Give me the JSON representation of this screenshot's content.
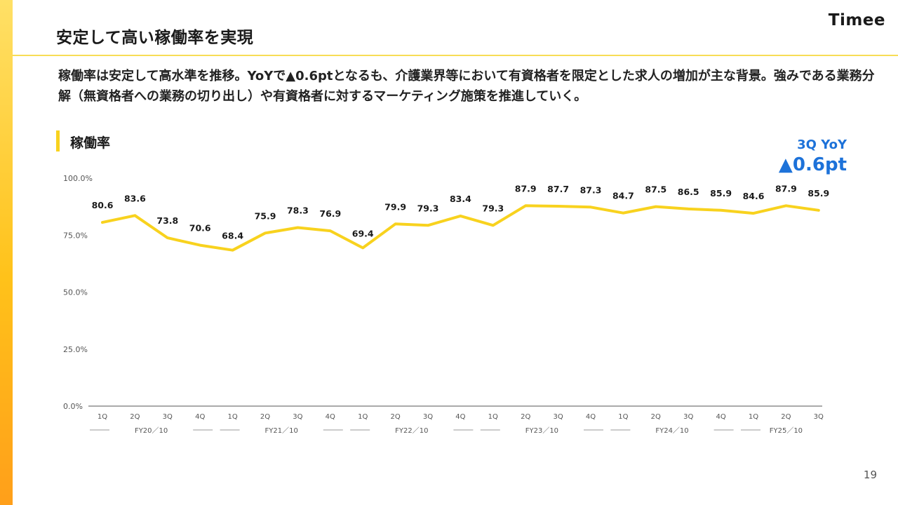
{
  "header": {
    "title": "安定して高い稼働率を実現",
    "logo": "Timee"
  },
  "body": {
    "description": "稼働率は安定して高水準を推移。YoYで▲0.6ptとなるも、介護業界等において有資格者を限定とした求人の増加が主な背景。強みである業務分解（無資格者への業務の切り出し）や有資格者に対するマーケティング施策を推進していく。"
  },
  "section": {
    "title": "稼働率"
  },
  "callout": {
    "label": "3Q YoY",
    "value": "▲0.6pt"
  },
  "chart_data": {
    "type": "line",
    "title": "稼働率",
    "ylim": [
      0,
      100
    ],
    "yticks": [
      "0.0%",
      "25.0%",
      "50.0%",
      "75.0%",
      "100.0%"
    ],
    "grid": false,
    "categories": [
      "1Q",
      "2Q",
      "3Q",
      "4Q",
      "1Q",
      "2Q",
      "3Q",
      "4Q",
      "1Q",
      "2Q",
      "3Q",
      "4Q",
      "1Q",
      "2Q",
      "3Q",
      "4Q",
      "1Q",
      "2Q",
      "3Q",
      "4Q",
      "1Q",
      "2Q",
      "3Q"
    ],
    "groups": [
      {
        "label": "FY20／10",
        "count": 4
      },
      {
        "label": "FY21／10",
        "count": 4
      },
      {
        "label": "FY22／10",
        "count": 4
      },
      {
        "label": "FY23／10",
        "count": 4
      },
      {
        "label": "FY24／10",
        "count": 4
      },
      {
        "label": "FY25／10",
        "count": 3
      }
    ],
    "series": [
      {
        "values": [
          80.6,
          83.6,
          73.8,
          70.6,
          68.4,
          75.9,
          78.3,
          76.9,
          69.4,
          79.9,
          79.3,
          83.4,
          79.3,
          87.9,
          87.7,
          87.3,
          84.7,
          87.5,
          86.5,
          85.9,
          84.6,
          87.9,
          85.9
        ],
        "labels": [
          "80.6",
          "83.6",
          "73.8",
          "70.6",
          "68.4",
          "75.9",
          "78.3",
          "76.9",
          "69.4",
          "79.9",
          "79.3",
          "83.4",
          "79.3",
          "87.9",
          "87.7",
          "87.3",
          "84.7",
          "87.5",
          "86.5",
          "85.9",
          "84.6",
          "87.9",
          "85.9"
        ],
        "color": "#f8d21e"
      }
    ]
  },
  "footer": {
    "page_number": "19"
  }
}
